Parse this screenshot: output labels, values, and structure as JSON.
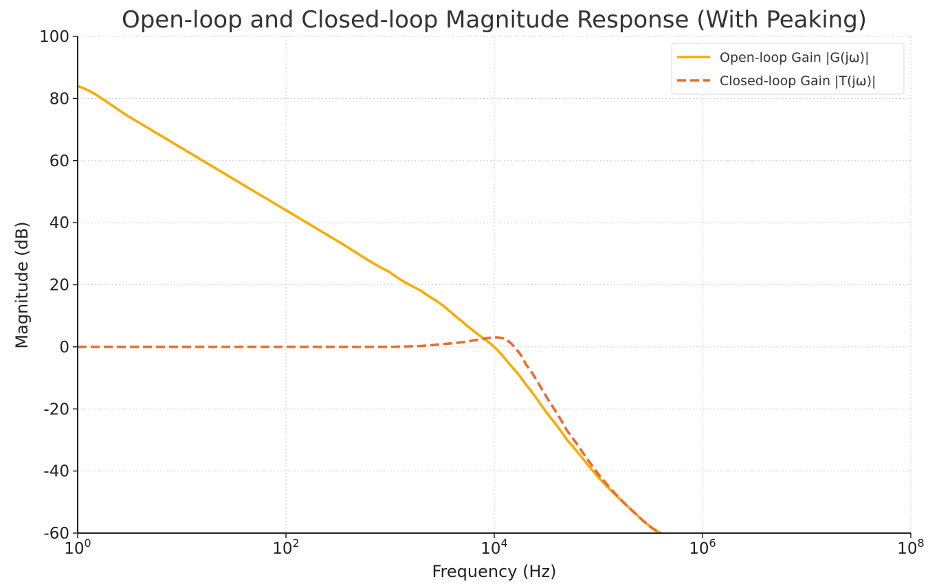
{
  "chart_data": {
    "type": "line",
    "title": "Open-loop and Closed-loop Magnitude Response (With Peaking)",
    "xlabel": "Frequency (Hz)",
    "ylabel": "Magnitude (dB)",
    "x_scale": "log",
    "xlim": [
      1,
      100000000
    ],
    "ylim": [
      -60,
      100
    ],
    "x_ticks": [
      {
        "base": "10",
        "exp": "0",
        "value": 1
      },
      {
        "base": "10",
        "exp": "2",
        "value": 100
      },
      {
        "base": "10",
        "exp": "4",
        "value": 10000
      },
      {
        "base": "10",
        "exp": "6",
        "value": 1000000
      },
      {
        "base": "10",
        "exp": "8",
        "value": 100000000
      }
    ],
    "y_ticks": [
      "100",
      "80",
      "60",
      "40",
      "20",
      "0",
      "-20",
      "-40",
      "-60"
    ],
    "grid": true,
    "legend_position": "top-right",
    "series": [
      {
        "name": "Open-loop Gain |G(jω)|",
        "color": "#f9ab00",
        "style": "solid",
        "x": [
          1,
          3.16,
          10,
          31.6,
          100,
          316,
          1000,
          2000,
          3160,
          5000,
          7000,
          10000,
          14000,
          20000,
          31600,
          50000,
          100000,
          200000,
          400000
        ],
        "y": [
          84,
          74,
          64,
          54,
          44,
          34,
          24,
          18,
          13.5,
          8,
          4,
          0,
          -5.5,
          -12,
          -21,
          -30,
          -42,
          -52,
          -60
        ]
      },
      {
        "name": "Closed-loop Gain |T(jω)|",
        "color": "#ee6a2a",
        "style": "dashed",
        "x": [
          1,
          10,
          100,
          1000,
          2000,
          3000,
          5000,
          7000,
          9000,
          11000,
          13000,
          16000,
          20000,
          31600,
          50000,
          100000,
          200000,
          400000
        ],
        "y": [
          0,
          0,
          0,
          0,
          0.3,
          0.8,
          1.5,
          2.3,
          2.9,
          3.0,
          2.3,
          -0.5,
          -5.5,
          -16,
          -27,
          -41,
          -52,
          -60
        ]
      }
    ]
  }
}
